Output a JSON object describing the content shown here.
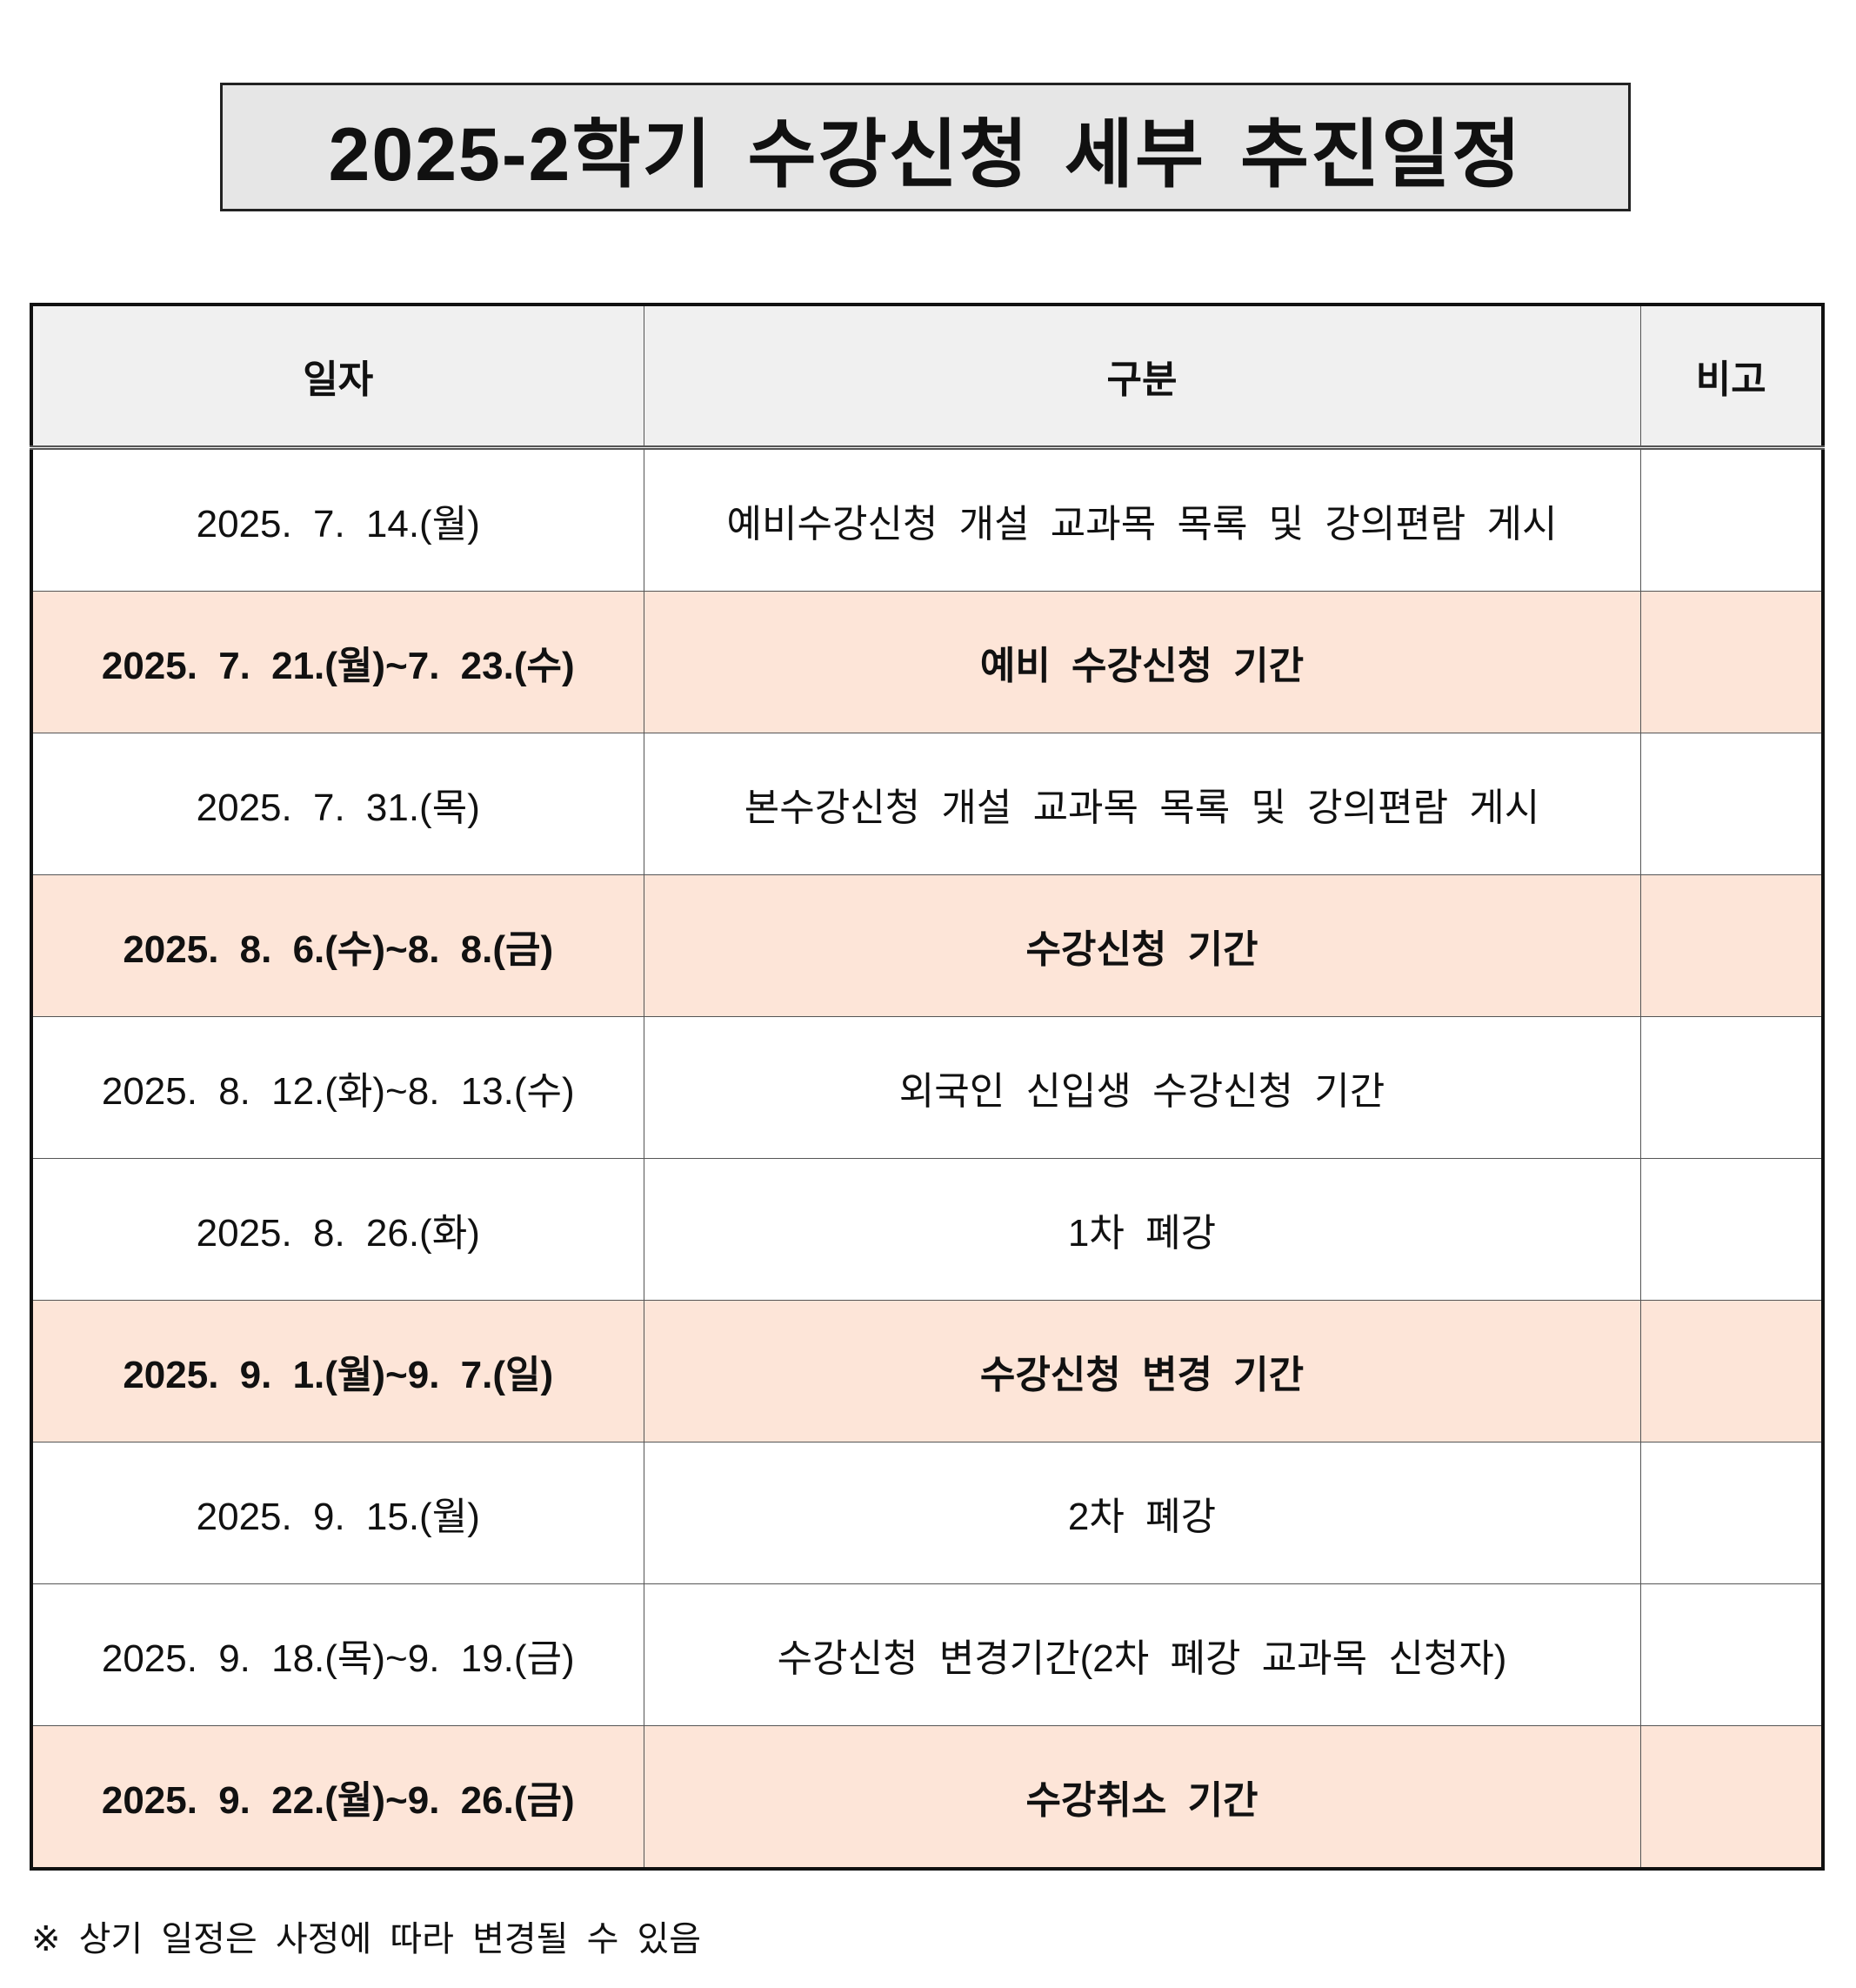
{
  "title": "2025-2학기 수강신청 세부 추진일정",
  "table": {
    "headers": [
      "일자",
      "구분",
      "비고"
    ],
    "rows": [
      {
        "date": "2025. 7. 14.(월)",
        "category": "예비수강신청 개설 교과목 목록 및 강의편람 게시",
        "note": "",
        "highlight": false
      },
      {
        "date": "2025. 7. 21.(월)~7. 23.(수)",
        "category": "예비 수강신청 기간",
        "note": "",
        "highlight": true
      },
      {
        "date": "2025. 7. 31.(목)",
        "category": "본수강신청 개설 교과목 목록 및 강의편람 게시",
        "note": "",
        "highlight": false
      },
      {
        "date": "2025. 8. 6.(수)~8. 8.(금)",
        "category": "수강신청 기간",
        "note": "",
        "highlight": true
      },
      {
        "date": "2025. 8. 12.(화)~8. 13.(수)",
        "category": "외국인 신입생 수강신청 기간",
        "note": "",
        "highlight": false
      },
      {
        "date": "2025. 8. 26.(화)",
        "category": "1차 폐강",
        "note": "",
        "highlight": false
      },
      {
        "date": "2025. 9. 1.(월)~9. 7.(일)",
        "category": "수강신청 변경 기간",
        "note": "",
        "highlight": true
      },
      {
        "date": "2025. 9. 15.(월)",
        "category": "2차 폐강",
        "note": "",
        "highlight": false
      },
      {
        "date": "2025. 9. 18.(목)~9. 19.(금)",
        "category": "수강신청 변경기간(2차 폐강 교과목 신청자)",
        "note": "",
        "highlight": false
      },
      {
        "date": "2025. 9. 22.(월)~9. 26.(금)",
        "category": "수강취소 기간",
        "note": "",
        "highlight": true
      }
    ]
  },
  "footnote": "※ 상기 일정은 사정에 따라 변경될 수 있음",
  "colors": {
    "header_bg": "#f0f0f0",
    "highlight_bg": "#fde5d8",
    "title_bg": "#e6e6e6"
  }
}
